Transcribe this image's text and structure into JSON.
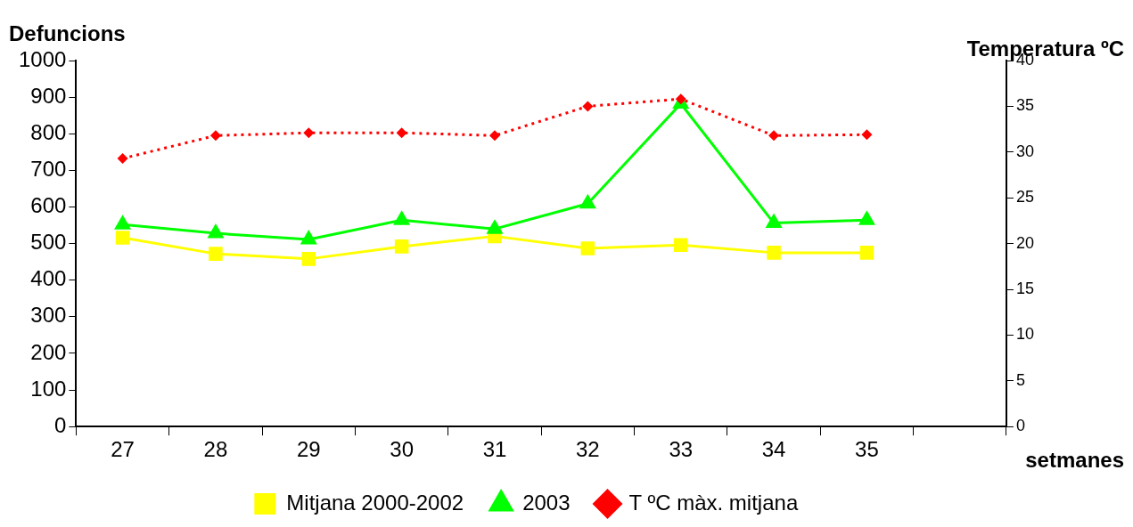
{
  "chart_data": {
    "type": "line",
    "ylabel": "Defuncions",
    "y2label": "Temperatura ºC",
    "xlabel": "setmanes",
    "categories": [
      "27",
      "28",
      "29",
      "30",
      "31",
      "32",
      "33",
      "34",
      "35",
      null
    ],
    "series": [
      {
        "name": "Mitjana 2000-2002",
        "color": "#ffff00",
        "marker": "square",
        "line_style": "solid",
        "values": [
          516,
          472,
          458,
          492,
          520,
          487,
          496,
          475,
          475,
          null
        ]
      },
      {
        "name": "2003",
        "color": "#00ff00",
        "marker": "triangle",
        "line_style": "solid",
        "values": [
          552,
          528,
          511,
          564,
          540,
          609,
          882,
          556,
          564,
          null
        ]
      },
      {
        "name": "T ºC màx. mitjana",
        "color": "#ff0000",
        "marker": "diamond",
        "line_style": "dotted",
        "axis": "y2",
        "values": [
          29.3,
          31.8,
          32.1,
          32.1,
          31.8,
          35.0,
          35.8,
          31.8,
          31.9,
          null
        ]
      }
    ],
    "ylim": [
      0,
      1000
    ],
    "yticks": [
      0,
      100,
      200,
      300,
      400,
      500,
      600,
      700,
      800,
      900,
      1000
    ],
    "y2lim": [
      0,
      40
    ],
    "y2ticks": [
      0,
      5,
      10,
      15,
      20,
      25,
      30,
      35,
      40
    ],
    "grid": false,
    "legend": "bottom"
  }
}
